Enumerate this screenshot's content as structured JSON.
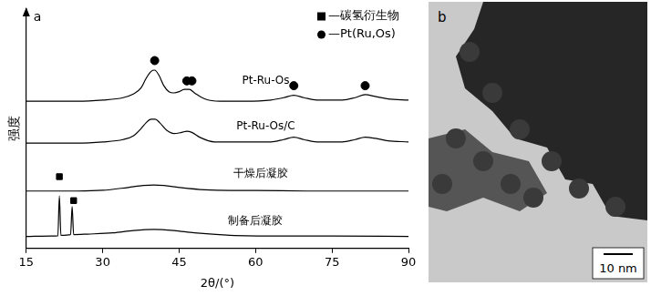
{
  "chart_data": {
    "type": "line",
    "panel_label": "a",
    "x_label": "2θ/(°)",
    "y_label": "强度",
    "xlim": [
      15,
      90
    ],
    "xticks": [
      15,
      30,
      45,
      60,
      75,
      90
    ],
    "ylim": [
      0,
      100
    ],
    "tick_labels": "x",
    "grid": false,
    "legend": "upper right",
    "series": [
      {
        "name": "Pt-Ru-Os",
        "color": "#000000",
        "label_at": [
          62,
          70
        ],
        "x": [
          15,
          20,
          25,
          30,
          34,
          36,
          37.5,
          38.5,
          39.5,
          40.2,
          41,
          42,
          43,
          44,
          45,
          46,
          47,
          48,
          50,
          53,
          58,
          63,
          65.5,
          67.5,
          69.5,
          72,
          77,
          79.5,
          81.5,
          83.5,
          86,
          90
        ],
        "values": [
          61.5,
          61.5,
          61.5,
          62,
          63,
          64.5,
          67,
          71,
          74,
          74.5,
          72.5,
          68,
          65.5,
          65,
          65.5,
          66.5,
          66.5,
          65,
          62.5,
          61.5,
          61.5,
          62,
          63,
          64,
          63,
          62,
          62,
          63,
          64.3,
          63.5,
          62.5,
          62
        ]
      },
      {
        "name": "Pt-Ru-Os/C",
        "color": "#000000",
        "label_at": [
          62,
          51
        ],
        "x": [
          15,
          20,
          25,
          30,
          34,
          36,
          37.5,
          38.5,
          39.5,
          40.3,
          41.2,
          42.5,
          44,
          45.5,
          46.5,
          47.5,
          49,
          52,
          58,
          63,
          65.5,
          67.5,
          69.5,
          72,
          77,
          79.5,
          81.5,
          83.5,
          86,
          90
        ],
        "values": [
          44,
          44,
          44,
          44.5,
          45.5,
          47,
          50,
          52.5,
          54,
          54,
          52.5,
          49.5,
          48,
          48.5,
          49,
          48.5,
          46.5,
          44.5,
          44.5,
          44.5,
          45.5,
          46.5,
          45.5,
          44.5,
          44.5,
          45.5,
          46.5,
          46,
          45,
          44.5
        ]
      },
      {
        "name": "干燥后凝胶",
        "color": "#000000",
        "label_at": [
          61,
          31
        ],
        "x": [
          15,
          20,
          25,
          30,
          35,
          38,
          40,
          42,
          45,
          50,
          55,
          60,
          70,
          80,
          90
        ],
        "values": [
          24,
          24,
          24,
          24.3,
          25.5,
          26.3,
          26.5,
          26.3,
          25.5,
          24.5,
          24.2,
          24.2,
          24,
          24,
          24
        ]
      },
      {
        "name": "制备后凝胶",
        "color": "#000000",
        "label_at": [
          60,
          11.5
        ],
        "x": [
          15,
          20,
          21.2,
          21.5,
          21.8,
          23.7,
          24,
          24.3,
          27,
          32,
          36,
          40,
          44,
          48,
          55,
          65,
          75,
          90
        ],
        "values": [
          5,
          5.2,
          5.3,
          22,
          5.5,
          5.8,
          17.5,
          5.8,
          6,
          6.5,
          7.5,
          8,
          7.5,
          6.5,
          5.5,
          5.2,
          5.2,
          5
        ]
      }
    ],
    "markers": [
      {
        "name": "—碳氢衍生物",
        "marker": "square",
        "color": "#000000",
        "x": [
          21.5,
          24.3
        ],
        "y": [
          30,
          20
        ]
      },
      {
        "name": "—Pt(Ru,Os)",
        "marker": "circle",
        "color": "#000000",
        "x": [
          40.2,
          46.5,
          47.5,
          67.5,
          81.5
        ],
        "y": [
          78.5,
          70,
          70,
          68,
          68
        ]
      }
    ]
  },
  "image_panel": {
    "label": "b",
    "scale_bar": "10 nm"
  }
}
